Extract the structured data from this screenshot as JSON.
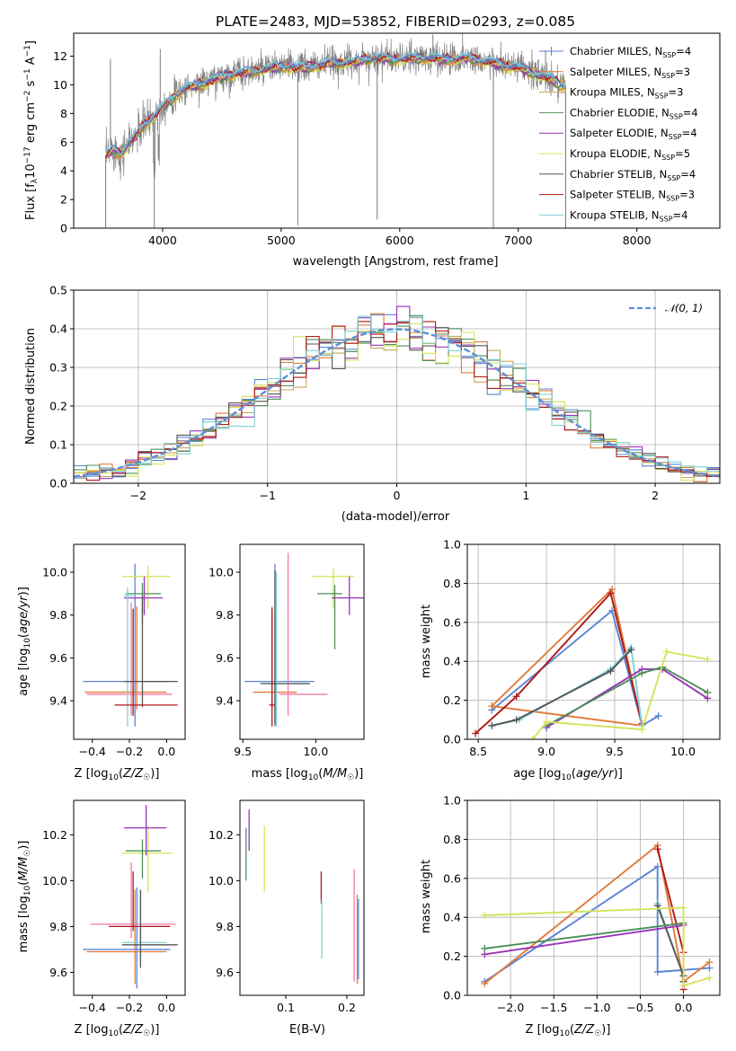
{
  "page": {
    "title": "PLATE=2483, MJD=53852, FIBERID=0293, z=0.085"
  },
  "colors": {
    "ChabMILES": "#5b83d6",
    "SalpMILES": "#e07b39",
    "KroupaMILES": "#c8a85a",
    "ChabELODIE": "#4b8f5a",
    "SalpELODIE": "#9a34b8",
    "KroupaELODIE": "#d4e35a",
    "ChabSTELIB": "#555555",
    "SalpSTELIB": "#b01818",
    "KroupaSTELIB": "#7fd1d6",
    "Pink": "#f07aa8",
    "Normal": "#5b8fd6"
  },
  "chart_data": [
    {
      "id": "spectrum",
      "type": "line",
      "title": "PLATE=2483, MJD=53852, FIBERID=0293, z=0.085",
      "xlabel": "wavelength [Angstrom, rest frame]",
      "ylabel": "Flux [f_λ 10^-17 erg cm^-2 s^-1 A^-1]",
      "xlim": [
        3250,
        8700
      ],
      "ylim": [
        0,
        13.6
      ],
      "xticks": [
        4000,
        5000,
        6000,
        7000,
        8000
      ],
      "yticks": [
        0,
        2,
        4,
        6,
        8,
        10,
        12
      ],
      "legend_position": "top-right",
      "legend": [
        {
          "label": "Chabrier MILES, N_SSP=4",
          "color": "ChabMILES",
          "marker": "plus"
        },
        {
          "label": "Salpeter MILES, N_SSP=3",
          "color": "SalpMILES"
        },
        {
          "label": "Kroupa MILES, N_SSP=3",
          "color": "KroupaMILES"
        },
        {
          "label": "Chabrier ELODIE, N_SSP=4",
          "color": "ChabELODIE"
        },
        {
          "label": "Salpeter ELODIE, N_SSP=4",
          "color": "SalpELODIE"
        },
        {
          "label": "Kroupa ELODIE, N_SSP=5",
          "color": "KroupaELODIE"
        },
        {
          "label": "Chabrier STELIB, N_SSP=4",
          "color": "ChabSTELIB"
        },
        {
          "label": "Salpeter STELIB, N_SSP=3",
          "color": "SalpSTELIB"
        },
        {
          "label": "Kroupa STELIB, N_SSP=4",
          "color": "KroupaSTELIB"
        }
      ],
      "continuum": {
        "x": [
          3520,
          3580,
          3650,
          3750,
          3850,
          3950,
          4050,
          4200,
          4400,
          4600,
          4800,
          5000,
          5200,
          5400,
          5600,
          5800,
          6000,
          6200,
          6400,
          6600,
          6800,
          7000,
          7200,
          7300,
          7400
        ],
        "y": [
          5.0,
          5.6,
          5.2,
          6.2,
          7.3,
          8.0,
          8.9,
          9.8,
          10.3,
          10.8,
          11.0,
          11.3,
          11.2,
          11.5,
          11.6,
          11.9,
          11.8,
          11.9,
          11.8,
          11.9,
          11.5,
          11.2,
          10.6,
          10.3,
          9.9
        ]
      },
      "spikes": [
        {
          "x": 3520,
          "y": 0
        },
        {
          "x": 3560,
          "y": 11.8
        },
        {
          "x": 3930,
          "y": 0
        },
        {
          "x": 3980,
          "y": 12.5
        },
        {
          "x": 5140,
          "y": 0.2
        },
        {
          "x": 5810,
          "y": 0.6
        },
        {
          "x": 6280,
          "y": 13.5
        },
        {
          "x": 6790,
          "y": 0
        },
        {
          "x": 7400,
          "y": 0
        },
        {
          "x": 7230,
          "y": 12.4
        }
      ]
    },
    {
      "id": "residuals",
      "type": "line",
      "xlabel": "(data-model)/error",
      "ylabel": "Normed distribution",
      "xlim": [
        -2.5,
        2.5
      ],
      "ylim": [
        0,
        0.5
      ],
      "xticks": [
        -2,
        -1,
        0,
        1,
        2
      ],
      "yticks": [
        0.0,
        0.1,
        0.2,
        0.3,
        0.4,
        0.5
      ],
      "legend_position": "top-right",
      "legend": [
        {
          "label": "N(0,1)",
          "color": "Normal",
          "style": "dashed"
        }
      ],
      "bin_width": 0.1
    },
    {
      "id": "age_vs_Z",
      "type": "scatter",
      "xlabel": "Z [log10(Z/Z☉)]",
      "ylabel": "age [log10(age/yr)]",
      "xlim": [
        -0.5,
        0.1
      ],
      "ylim": [
        9.22,
        10.13
      ],
      "xticks": [
        -0.4,
        -0.2,
        0.0
      ],
      "yticks": [
        9.4,
        9.6,
        9.8,
        10.0
      ],
      "errorbars": [
        {
          "x": -0.17,
          "y": 9.49,
          "xerr": [
            0.28,
            0.17
          ],
          "yerr": [
            0.21,
            0.55
          ],
          "color": "ChabMILES"
        },
        {
          "x": -0.16,
          "y": 9.44,
          "xerr": [
            0.28,
            0.16
          ],
          "yerr": [
            0.08,
            0.4
          ],
          "color": "SalpMILES"
        },
        {
          "x": -0.19,
          "y": 9.43,
          "xerr": [
            0.24,
            0.22
          ],
          "yerr": [
            0.1,
            0.43
          ],
          "color": "Pink"
        },
        {
          "x": -0.1,
          "y": 9.98,
          "xerr": [
            0.14,
            0.12
          ],
          "yerr": [
            0.15,
            0.05
          ],
          "color": "KroupaELODIE"
        },
        {
          "x": -0.13,
          "y": 9.9,
          "xerr": [
            0.09,
            0.1
          ],
          "yerr": [
            0.14,
            0.05
          ],
          "color": "ChabELODIE"
        },
        {
          "x": -0.12,
          "y": 9.88,
          "xerr": [
            0.11,
            0.1
          ],
          "yerr": [
            0.08,
            0.1
          ],
          "color": "SalpELODIE"
        },
        {
          "x": -0.21,
          "y": 9.89,
          "xerr": [
            0.02,
            0.03
          ],
          "yerr": [
            0.61,
            0.04
          ],
          "color": "KroupaSTELIB"
        },
        {
          "x": -0.13,
          "y": 9.49,
          "xerr": [
            0.1,
            0.19
          ],
          "yerr": [
            0.12,
            0.4
          ],
          "color": "ChabSTELIB"
        },
        {
          "x": -0.18,
          "y": 9.38,
          "xerr": [
            0.1,
            0.24
          ],
          "yerr": [
            0.05,
            0.45
          ],
          "color": "SalpSTELIB"
        }
      ]
    },
    {
      "id": "age_vs_mass",
      "type": "scatter",
      "xlabel": "mass [log10(M/M☉)]",
      "ylabel": "",
      "xlim": [
        9.48,
        10.33
      ],
      "ylim": [
        9.22,
        10.13
      ],
      "xticks": [
        9.5,
        10.0
      ],
      "yticks": [
        9.4,
        9.6,
        9.8,
        10.0
      ],
      "errorbars": [
        {
          "x": 9.72,
          "y": 9.49,
          "xerr": [
            0.21,
            0.27
          ],
          "yerr": [
            0.21,
            0.55
          ],
          "color": "ChabMILES"
        },
        {
          "x": 9.7,
          "y": 9.44,
          "xerr": [
            0.13,
            0.17
          ],
          "yerr": [
            0.08,
            0.4
          ],
          "color": "SalpMILES"
        },
        {
          "x": 9.81,
          "y": 9.43,
          "xerr": [
            0.06,
            0.27
          ],
          "yerr": [
            0.1,
            0.66
          ],
          "color": "Pink"
        },
        {
          "x": 10.12,
          "y": 9.98,
          "xerr": [
            0.15,
            0.14
          ],
          "yerr": [
            0.15,
            0.04
          ],
          "color": "KroupaELODIE"
        },
        {
          "x": 10.13,
          "y": 9.9,
          "xerr": [
            0.12,
            0.05
          ],
          "yerr": [
            0.26,
            0.04
          ],
          "color": "ChabELODIE"
        },
        {
          "x": 10.23,
          "y": 9.88,
          "xerr": [
            0.12,
            0.1
          ],
          "yerr": [
            0.08,
            0.1
          ],
          "color": "SalpELODIE"
        },
        {
          "x": 9.73,
          "y": 9.48,
          "xerr": [
            0.09,
            0.22
          ],
          "yerr": [
            0.2,
            0.52
          ],
          "color": "KroupaSTELIB"
        },
        {
          "x": 9.72,
          "y": 9.48,
          "xerr": [
            0.1,
            0.24
          ],
          "yerr": [
            0.19,
            0.53
          ],
          "color": "ChabSTELIB"
        },
        {
          "x": 9.7,
          "y": 9.38,
          "xerr": [
            0.02,
            0.02
          ],
          "yerr": [
            0.1,
            0.45
          ],
          "color": "SalpSTELIB"
        }
      ]
    },
    {
      "id": "weight_vs_age",
      "type": "line",
      "xlabel": "age [log10(age/yr)]",
      "ylabel": "mass weight",
      "xlim": [
        8.42,
        10.27
      ],
      "ylim": [
        0,
        1.0
      ],
      "xticks": [
        8.5,
        9.0,
        9.5,
        10.0
      ],
      "yticks": [
        0.0,
        0.2,
        0.4,
        0.6,
        0.8,
        1.0
      ],
      "series": [
        {
          "color": "ChabMILES",
          "x": [
            8.6,
            9.48,
            9.7,
            9.82
          ],
          "y": [
            0.15,
            0.66,
            0.07,
            0.12
          ]
        },
        {
          "color": "SalpMILES",
          "x": [
            8.6,
            9.48,
            9.7,
            8.6
          ],
          "y": [
            0.17,
            0.77,
            0.07,
            0.17
          ]
        },
        {
          "color": "SalpSTELIB",
          "x": [
            8.48,
            8.78,
            9.47,
            9.7
          ],
          "y": [
            0.03,
            0.22,
            0.75,
            0.08
          ]
        },
        {
          "color": "KroupaSTELIB",
          "x": [
            8.6,
            8.8,
            9.47,
            9.62,
            9.7
          ],
          "y": [
            0.07,
            0.1,
            0.36,
            0.47,
            0.07
          ]
        },
        {
          "color": "ChabSTELIB",
          "x": [
            8.6,
            8.78,
            9.47,
            9.62
          ],
          "y": [
            0.07,
            0.1,
            0.35,
            0.46
          ]
        },
        {
          "color": "SalpELODIE",
          "x": [
            9.0,
            9.7,
            9.85,
            10.18
          ],
          "y": [
            0.06,
            0.36,
            0.36,
            0.21
          ]
        },
        {
          "color": "ChabELODIE",
          "x": [
            9.0,
            9.7,
            9.85,
            10.18
          ],
          "y": [
            0.07,
            0.34,
            0.37,
            0.24
          ]
        },
        {
          "color": "KroupaELODIE",
          "x": [
            8.9,
            9.0,
            9.7,
            9.88,
            10.18
          ],
          "y": [
            0.0,
            0.09,
            0.05,
            0.45,
            0.41
          ]
        }
      ]
    },
    {
      "id": "mass_vs_Z",
      "type": "scatter",
      "xlabel": "Z [log10(Z/Z☉)]",
      "ylabel": "mass [log10(M/M☉)]",
      "xlim": [
        -0.5,
        0.1
      ],
      "ylim": [
        9.5,
        10.35
      ],
      "xticks": [
        -0.4,
        -0.2,
        0.0
      ],
      "yticks": [
        9.6,
        9.8,
        10.0,
        10.2
      ],
      "errorbars": [
        {
          "x": -0.16,
          "y": 9.7,
          "xerr": [
            0.29,
            0.18
          ],
          "yerr": [
            0.17,
            0.27
          ],
          "color": "ChabMILES"
        },
        {
          "x": -0.17,
          "y": 9.69,
          "xerr": [
            0.26,
            0.17
          ],
          "yerr": [
            0.14,
            0.27
          ],
          "color": "SalpMILES"
        },
        {
          "x": -0.19,
          "y": 9.81,
          "xerr": [
            0.22,
            0.24
          ],
          "yerr": [
            0.06,
            0.27
          ],
          "color": "Pink"
        },
        {
          "x": -0.1,
          "y": 10.12,
          "xerr": [
            0.14,
            0.13
          ],
          "yerr": [
            0.17,
            0.12
          ],
          "color": "KroupaELODIE"
        },
        {
          "x": -0.13,
          "y": 10.13,
          "xerr": [
            0.09,
            0.1
          ],
          "yerr": [
            0.12,
            0.05
          ],
          "color": "ChabELODIE"
        },
        {
          "x": -0.11,
          "y": 10.23,
          "xerr": [
            0.12,
            0.11
          ],
          "yerr": [
            0.12,
            0.1
          ],
          "color": "SalpELODIE"
        },
        {
          "x": -0.14,
          "y": 9.73,
          "xerr": [
            0.1,
            0.14
          ],
          "yerr": [
            0.09,
            0.22
          ],
          "color": "KroupaSTELIB"
        },
        {
          "x": -0.14,
          "y": 9.72,
          "xerr": [
            0.1,
            0.2
          ],
          "yerr": [
            0.1,
            0.24
          ],
          "color": "ChabSTELIB"
        },
        {
          "x": -0.18,
          "y": 9.8,
          "xerr": [
            0.13,
            0.2
          ],
          "yerr": [
            0.02,
            0.24
          ],
          "color": "SalpSTELIB"
        }
      ]
    },
    {
      "id": "mass_vs_EBV",
      "type": "scatter",
      "xlabel": "E(B-V)",
      "ylabel": "",
      "xlim": [
        0.025,
        0.228
      ],
      "ylim": [
        9.5,
        10.35
      ],
      "xticks": [
        0.1,
        0.2
      ],
      "yticks": [
        9.6,
        9.8,
        10.0,
        10.2
      ],
      "errorbars": [
        {
          "x": 0.035,
          "y": 10.13,
          "yerr": [
            0.13,
            0.1
          ],
          "color": "ChabELODIE"
        },
        {
          "x": 0.04,
          "y": 10.23,
          "yerr": [
            0.1,
            0.08
          ],
          "color": "SalpELODIE"
        },
        {
          "x": 0.065,
          "y": 10.12,
          "yerr": [
            0.17,
            0.12
          ],
          "color": "KroupaELODIE"
        },
        {
          "x": 0.158,
          "y": 9.95,
          "yerr": [
            0.05,
            0.09
          ],
          "color": "SalpSTELIB"
        },
        {
          "x": 0.159,
          "y": 9.8,
          "yerr": [
            0.14,
            0.12
          ],
          "color": "KroupaSTELIB"
        },
        {
          "x": 0.212,
          "y": 9.8,
          "yerr": [
            0.24,
            0.25
          ],
          "color": "Pink"
        },
        {
          "x": 0.217,
          "y": 9.72,
          "yerr": [
            0.17,
            0.22
          ],
          "color": "SalpMILES"
        },
        {
          "x": 0.219,
          "y": 9.72,
          "yerr": [
            0.15,
            0.2
          ],
          "color": "ChabMILES"
        }
      ]
    },
    {
      "id": "weight_vs_Z",
      "type": "line",
      "xlabel": "Z [log10(Z/Z☉)]",
      "ylabel": "mass weight",
      "xlim": [
        -2.5,
        0.42
      ],
      "ylim": [
        0,
        1.0
      ],
      "xticks": [
        -2.0,
        -1.5,
        -1.0,
        -0.5,
        0.0
      ],
      "yticks": [
        0.0,
        0.2,
        0.4,
        0.6,
        0.8,
        1.0
      ],
      "series": [
        {
          "color": "ChabMILES",
          "x": [
            -2.3,
            -0.3,
            -0.3,
            0.3
          ],
          "y": [
            0.07,
            0.66,
            0.12,
            0.14
          ]
        },
        {
          "color": "SalpMILES",
          "x": [
            -2.3,
            -0.3,
            0.0,
            0.3
          ],
          "y": [
            0.06,
            0.77,
            0.07,
            0.17
          ]
        },
        {
          "color": "SalpSTELIB",
          "x": [
            -0.3,
            0.0,
            0.0
          ],
          "y": [
            0.75,
            0.22,
            0.03
          ]
        },
        {
          "color": "KroupaSTELIB",
          "x": [
            -0.3,
            0.0,
            0.0
          ],
          "y": [
            0.47,
            0.1,
            0.07
          ]
        },
        {
          "color": "ChabSTELIB",
          "x": [
            -0.3,
            0.0,
            0.0
          ],
          "y": [
            0.46,
            0.1,
            0.07
          ]
        },
        {
          "color": "SalpELODIE",
          "x": [
            -2.3,
            0.0
          ],
          "y": [
            0.21,
            0.36
          ]
        },
        {
          "color": "ChabELODIE",
          "x": [
            -2.3,
            0.0
          ],
          "y": [
            0.24,
            0.37
          ]
        },
        {
          "color": "KroupaELODIE",
          "x": [
            -2.3,
            0.0,
            0.0,
            0.3
          ],
          "y": [
            0.41,
            0.45,
            0.05,
            0.09
          ]
        }
      ]
    }
  ]
}
